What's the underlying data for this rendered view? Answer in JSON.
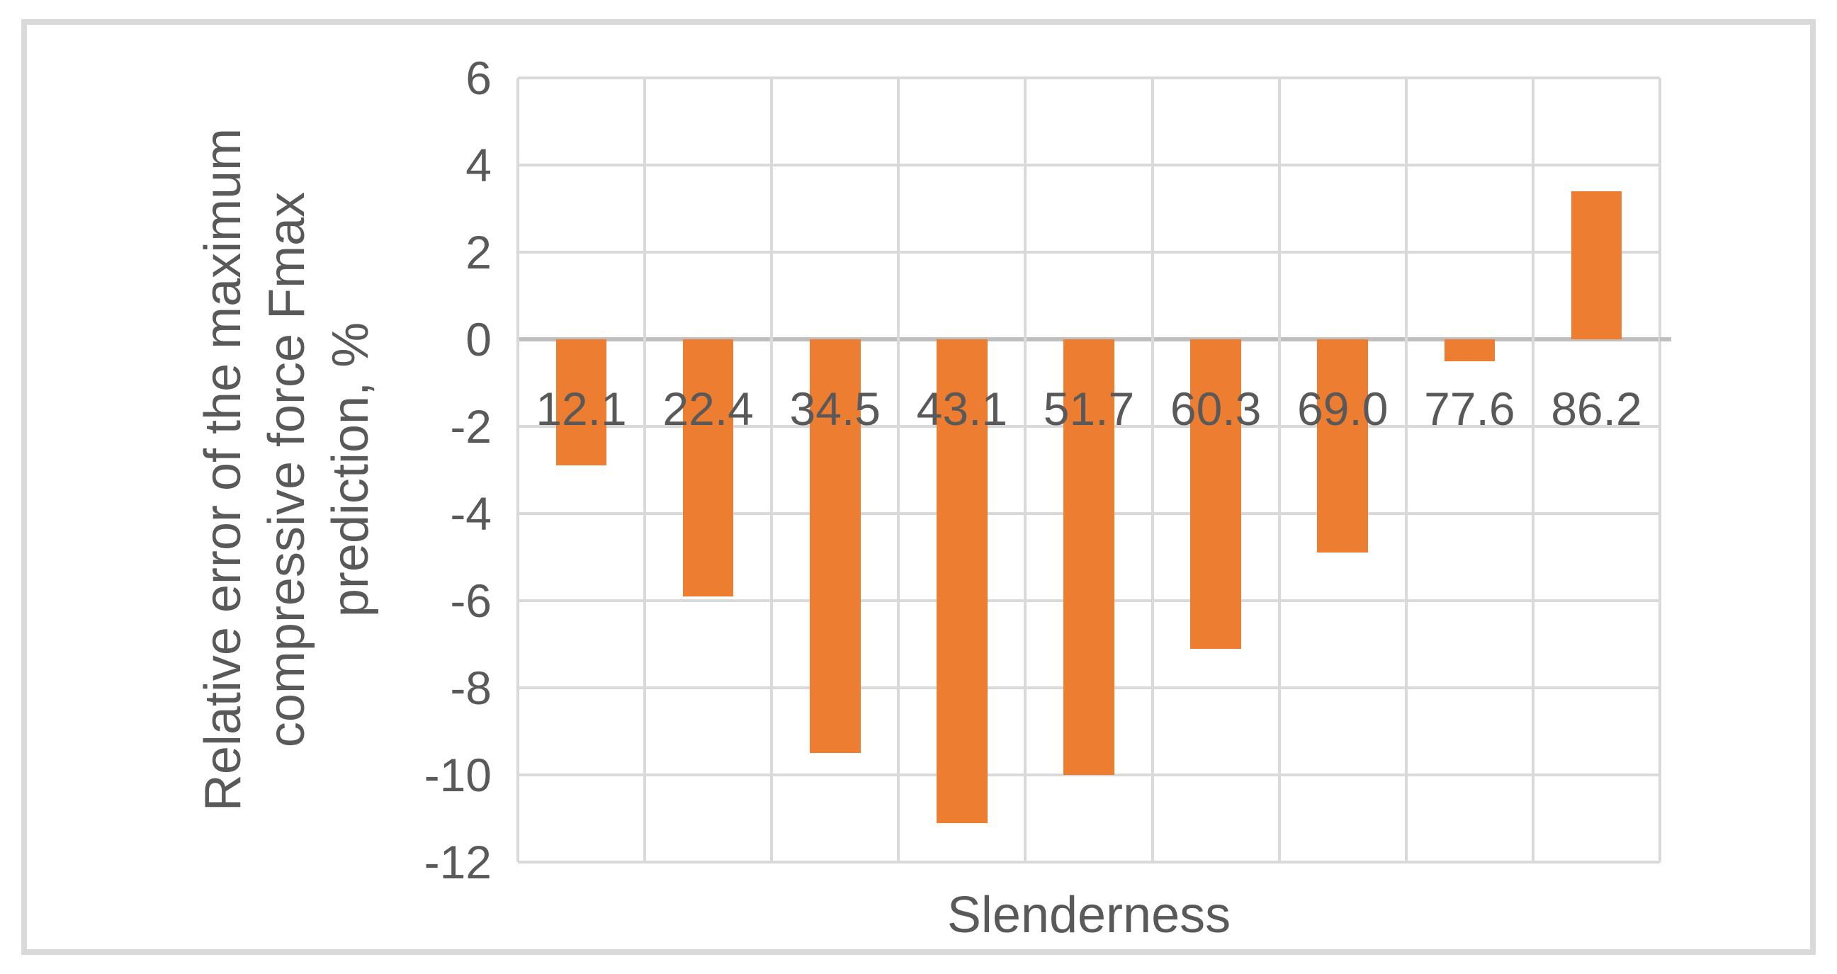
{
  "chart_data": {
    "type": "bar",
    "title": "",
    "categories": [
      "12.1",
      "22.4",
      "34.5",
      "43.1",
      "51.7",
      "60.3",
      "69.0",
      "77.6",
      "86.2"
    ],
    "values": [
      -2.9,
      -5.9,
      -9.5,
      -11.1,
      -10.0,
      -7.1,
      -4.9,
      -0.5,
      3.4
    ],
    "xlabel": "Slenderness",
    "ylabel": "Relative error of the maximum compressive force Fmax prediction, %",
    "ylabel_lines": [
      "Relative error of the maximum",
      "compressive force Fmax",
      "prediction, %"
    ],
    "ylim": [
      -12,
      6
    ],
    "ytick_step": 2,
    "yticks": [
      6,
      4,
      2,
      0,
      -2,
      -4,
      -6,
      -8,
      -10,
      -12
    ],
    "grid": "horizontal and vertical major gridlines",
    "legend": false,
    "colors": {
      "bar_fill": "#ED7D31",
      "gridline": "#D9D9D9",
      "zero_axis_line": "#BFBFBF",
      "text": "#595959",
      "frame_border": "#D9D9D9",
      "background": "#FFFFFF"
    }
  }
}
